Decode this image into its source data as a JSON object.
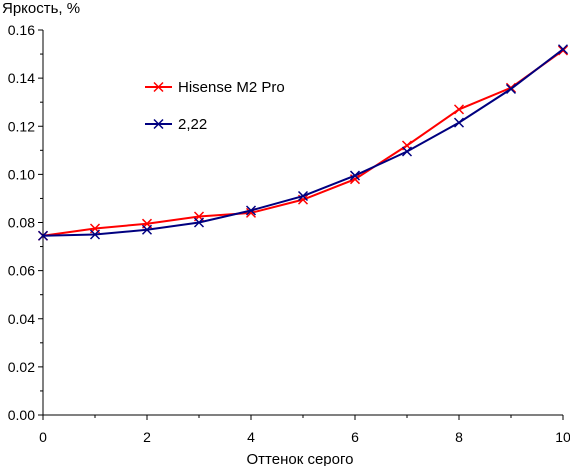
{
  "chart_data": {
    "type": "line",
    "xlabel": "Оттенок серого",
    "ylabel": "Яркость, %",
    "xlim": [
      0,
      10
    ],
    "ylim": [
      0,
      0.16
    ],
    "x_ticks": [
      "0",
      "2",
      "4",
      "6",
      "8",
      "10"
    ],
    "y_ticks": [
      "0.00",
      "0.02",
      "0.04",
      "0.06",
      "0.08",
      "0.10",
      "0.12",
      "0.14",
      "0.16"
    ],
    "grid": false,
    "legend_position": "upper-left inside",
    "x": [
      0,
      1,
      2,
      3,
      4,
      5,
      6,
      7,
      8,
      9,
      10
    ],
    "series": [
      {
        "name": "Hisense M2 Pro",
        "color": "#ff0000",
        "marker": "x",
        "values": [
          0.0745,
          0.0775,
          0.0795,
          0.0825,
          0.084,
          0.0895,
          0.098,
          0.112,
          0.127,
          0.136,
          0.1515
        ]
      },
      {
        "name": "2,22",
        "color": "#000080",
        "marker": "x",
        "values": [
          0.0745,
          0.075,
          0.077,
          0.08,
          0.085,
          0.091,
          0.0995,
          0.1095,
          0.1215,
          0.1355,
          0.152
        ]
      }
    ]
  }
}
